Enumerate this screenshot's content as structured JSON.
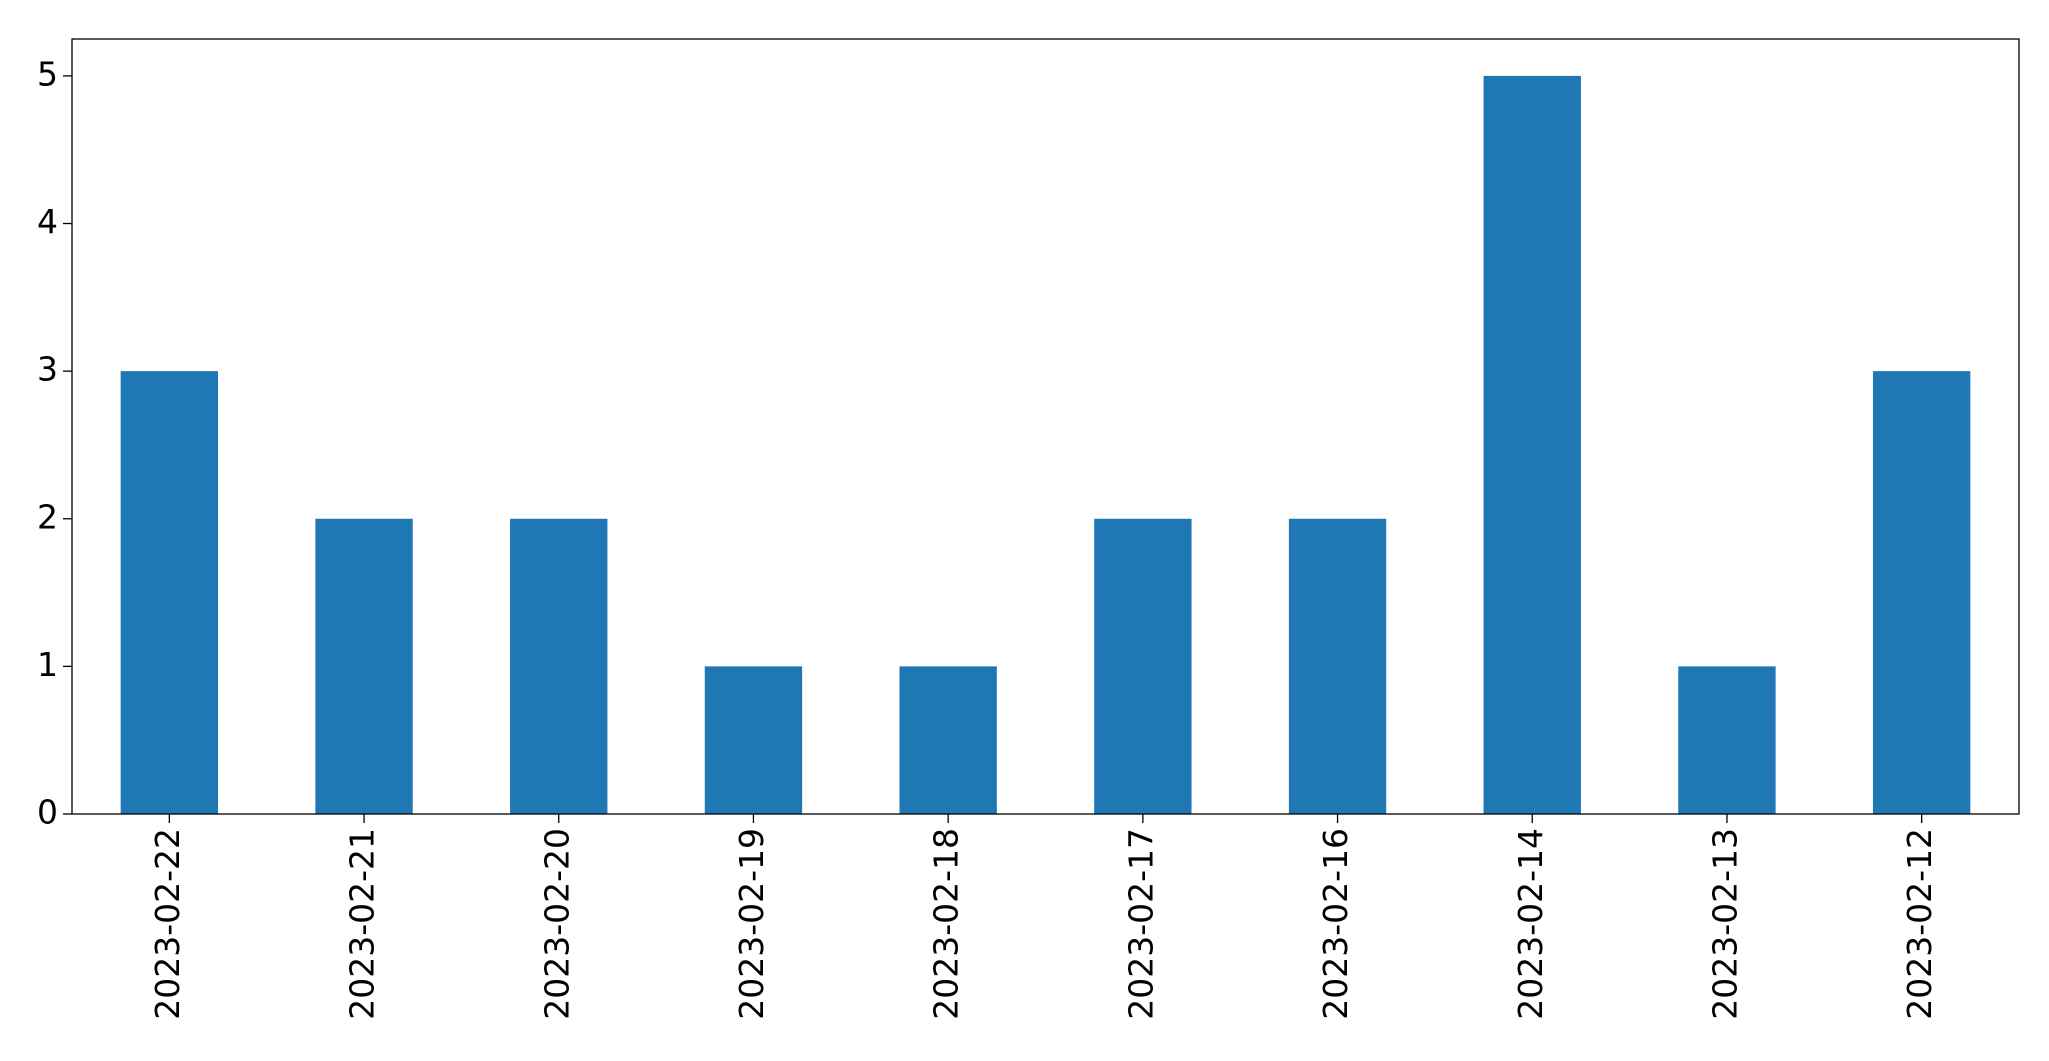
{
  "chart_data": {
    "type": "bar",
    "categories": [
      "2023-02-22",
      "2023-02-21",
      "2023-02-20",
      "2023-02-19",
      "2023-02-18",
      "2023-02-17",
      "2023-02-16",
      "2023-02-14",
      "2023-02-13",
      "2023-02-12"
    ],
    "values": [
      3,
      2,
      2,
      1,
      1,
      2,
      2,
      5,
      1,
      3
    ],
    "color": "#1f77b4",
    "ylim": [
      0,
      5.25
    ],
    "yticks": [
      0,
      1,
      2,
      3,
      4,
      5
    ],
    "grid": false
  }
}
